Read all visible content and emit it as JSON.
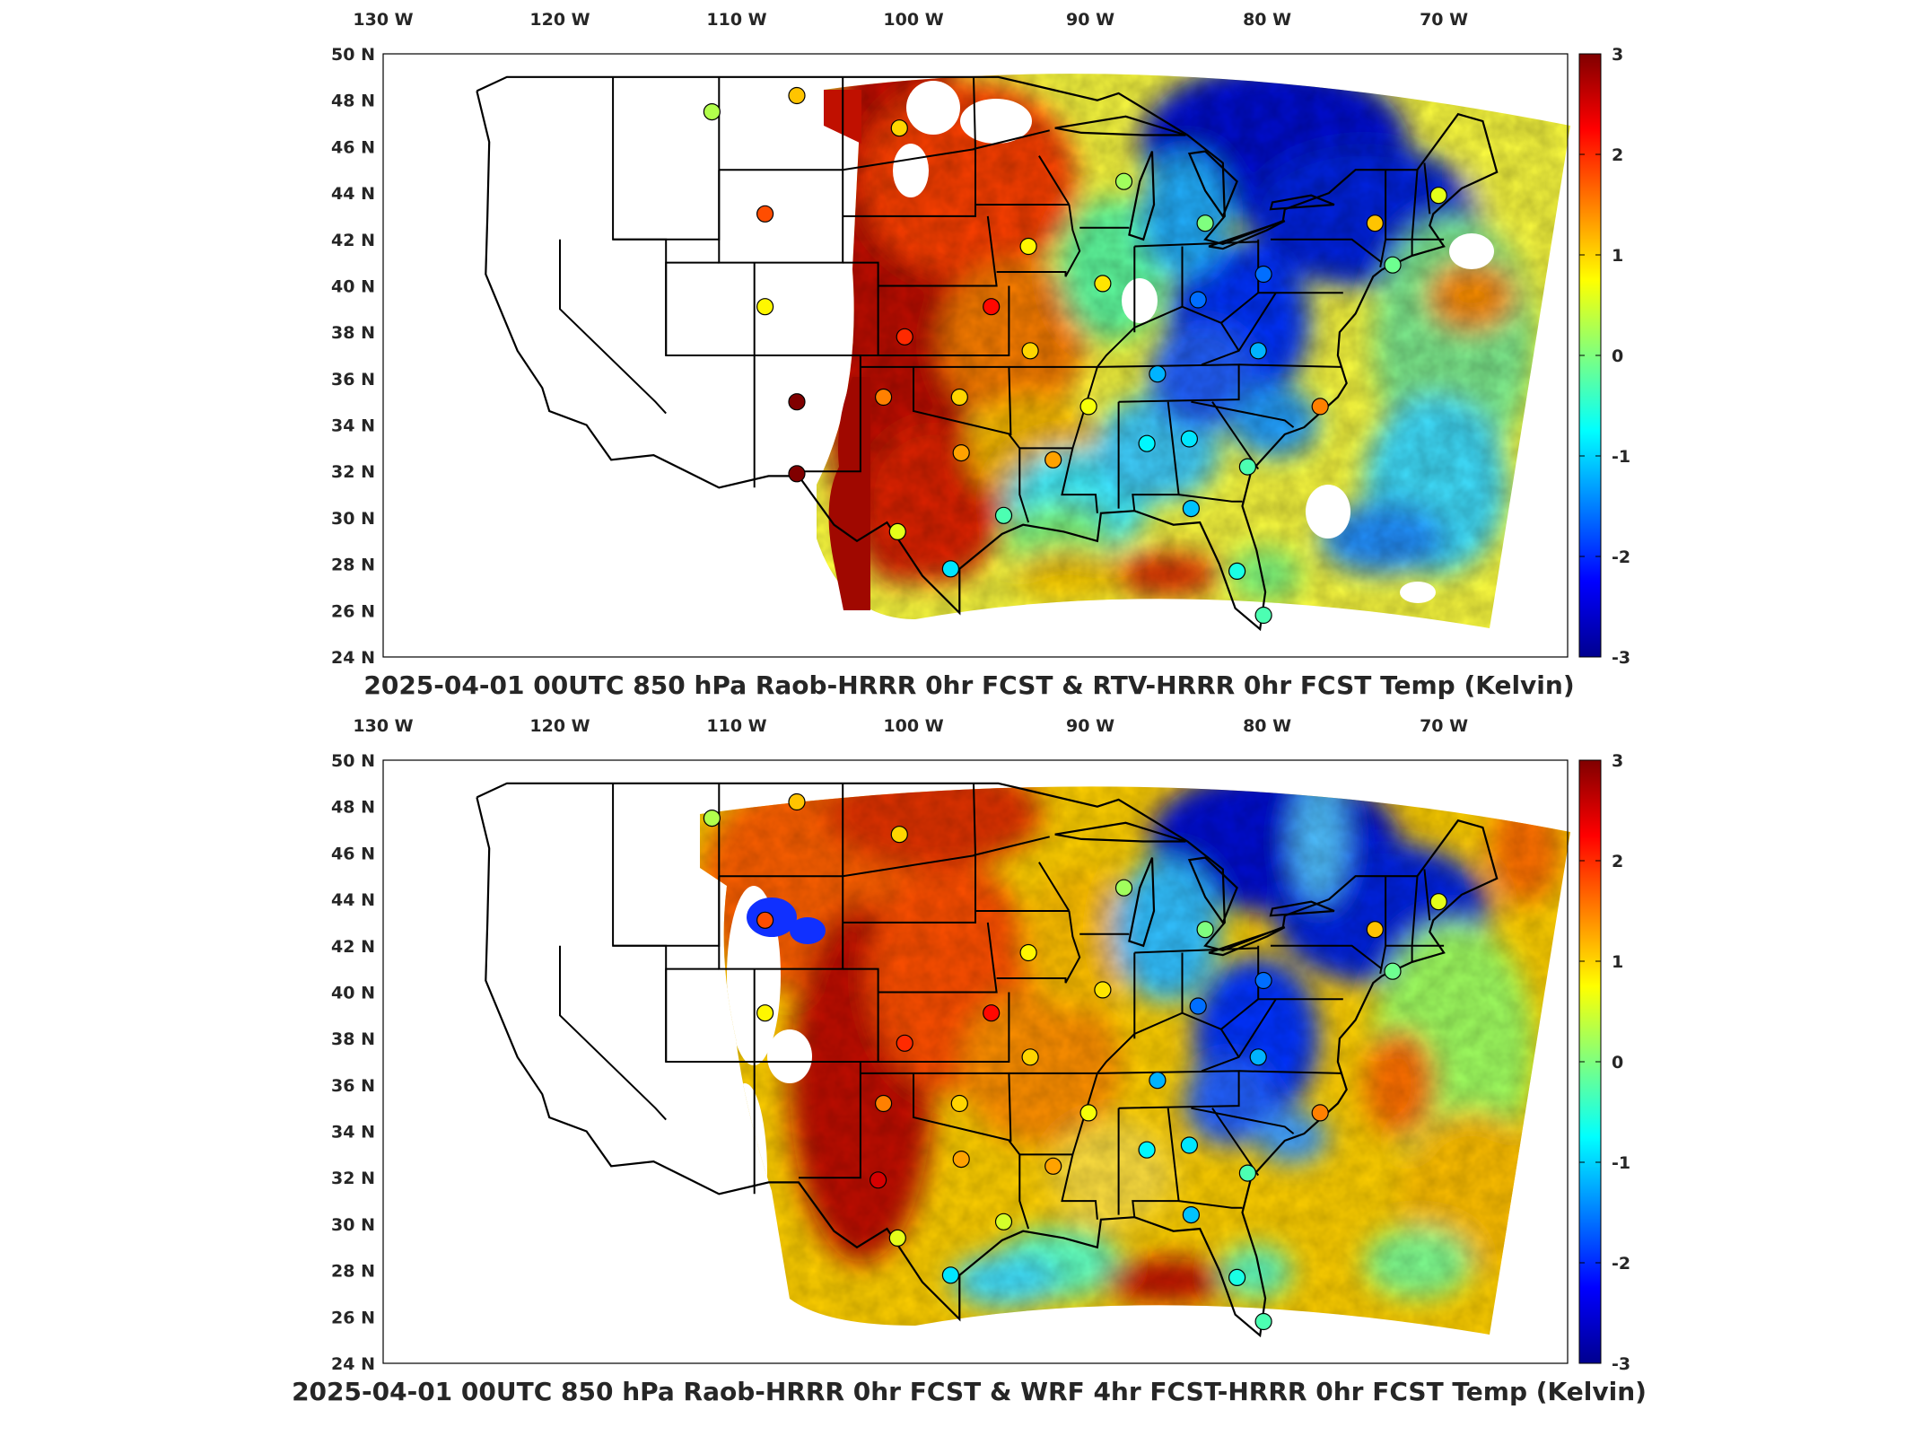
{
  "panels": [
    {
      "id": "top",
      "title": "2025-04-01 00UTC 850 hPa Raob-HRRR 0hr FCST & RTV-HRRR 0hr FCST Temp (Kelvin)",
      "stations_label": "Raob-HRRR",
      "field_label": "RTV-HRRR",
      "stations": [
        {
          "lon": -111.4,
          "lat": 47.5,
          "value": 0.3
        },
        {
          "lon": -106.6,
          "lat": 48.2,
          "value": 1.1
        },
        {
          "lon": -100.8,
          "lat": 46.8,
          "value": 1.0
        },
        {
          "lon": -108.4,
          "lat": 43.1,
          "value": 1.8
        },
        {
          "lon": -108.4,
          "lat": 39.1,
          "value": 0.8
        },
        {
          "lon": -106.6,
          "lat": 35.0,
          "value": 3.0
        },
        {
          "lon": -106.6,
          "lat": 31.9,
          "value": 3.0
        },
        {
          "lon": -100.5,
          "lat": 37.8,
          "value": 2.0
        },
        {
          "lon": -95.6,
          "lat": 39.1,
          "value": 2.2
        },
        {
          "lon": -101.7,
          "lat": 35.2,
          "value": 1.5
        },
        {
          "lon": -97.4,
          "lat": 35.2,
          "value": 1.0
        },
        {
          "lon": -93.4,
          "lat": 37.2,
          "value": 1.0
        },
        {
          "lon": -97.3,
          "lat": 32.8,
          "value": 1.3
        },
        {
          "lon": -100.9,
          "lat": 29.4,
          "value": 0.6
        },
        {
          "lon": -97.9,
          "lat": 27.8,
          "value": -0.9
        },
        {
          "lon": -94.9,
          "lat": 30.1,
          "value": -0.3
        },
        {
          "lon": -92.1,
          "lat": 32.5,
          "value": 1.3
        },
        {
          "lon": -90.1,
          "lat": 34.8,
          "value": 0.7
        },
        {
          "lon": -93.5,
          "lat": 41.7,
          "value": 0.8
        },
        {
          "lon": -89.3,
          "lat": 40.1,
          "value": 0.9
        },
        {
          "lon": -88.1,
          "lat": 44.5,
          "value": 0.2
        },
        {
          "lon": -83.5,
          "lat": 42.7,
          "value": 0.0
        },
        {
          "lon": -86.2,
          "lat": 36.2,
          "value": -1.2
        },
        {
          "lon": -83.9,
          "lat": 39.4,
          "value": -1.6
        },
        {
          "lon": -80.2,
          "lat": 40.5,
          "value": -1.6
        },
        {
          "lon": -80.5,
          "lat": 37.2,
          "value": -1.2
        },
        {
          "lon": -86.8,
          "lat": 33.2,
          "value": -0.8
        },
        {
          "lon": -84.4,
          "lat": 33.4,
          "value": -0.9
        },
        {
          "lon": -81.1,
          "lat": 32.2,
          "value": -0.3
        },
        {
          "lon": -77.0,
          "lat": 34.8,
          "value": 1.5
        },
        {
          "lon": -84.3,
          "lat": 30.4,
          "value": -1.1
        },
        {
          "lon": -81.7,
          "lat": 27.7,
          "value": -0.6
        },
        {
          "lon": -80.2,
          "lat": 25.8,
          "value": -0.3
        },
        {
          "lon": -73.9,
          "lat": 42.7,
          "value": 1.1
        },
        {
          "lon": -70.3,
          "lat": 43.9,
          "value": 0.6
        },
        {
          "lon": -72.9,
          "lat": 40.9,
          "value": -0.1
        }
      ]
    },
    {
      "id": "bottom",
      "title": "2025-04-01 00UTC 850 hPa Raob-HRRR 0hr FCST & WRF 4hr FCST-HRRR 0hr FCST Temp (Kelvin)",
      "stations_label": "Raob-HRRR",
      "field_label": "WRF 4hr FCST-HRRR",
      "stations": [
        {
          "lon": -111.4,
          "lat": 47.5,
          "value": 0.3
        },
        {
          "lon": -106.6,
          "lat": 48.2,
          "value": 1.1
        },
        {
          "lon": -100.8,
          "lat": 46.8,
          "value": 1.0
        },
        {
          "lon": -108.4,
          "lat": 43.1,
          "value": 1.8
        },
        {
          "lon": -108.4,
          "lat": 39.1,
          "value": 0.8
        },
        {
          "lon": -100.5,
          "lat": 37.8,
          "value": 2.0
        },
        {
          "lon": -95.6,
          "lat": 39.1,
          "value": 2.2
        },
        {
          "lon": -101.7,
          "lat": 35.2,
          "value": 1.5
        },
        {
          "lon": -97.4,
          "lat": 35.2,
          "value": 1.0
        },
        {
          "lon": -93.4,
          "lat": 37.2,
          "value": 1.0
        },
        {
          "lon": -97.3,
          "lat": 32.8,
          "value": 1.3
        },
        {
          "lon": -102.0,
          "lat": 31.9,
          "value": 2.5
        },
        {
          "lon": -100.9,
          "lat": 29.4,
          "value": 0.6
        },
        {
          "lon": -97.9,
          "lat": 27.8,
          "value": -0.9
        },
        {
          "lon": -94.9,
          "lat": 30.1,
          "value": 0.5
        },
        {
          "lon": -92.1,
          "lat": 32.5,
          "value": 1.3
        },
        {
          "lon": -90.1,
          "lat": 34.8,
          "value": 0.7
        },
        {
          "lon": -93.5,
          "lat": 41.7,
          "value": 0.8
        },
        {
          "lon": -89.3,
          "lat": 40.1,
          "value": 0.9
        },
        {
          "lon": -88.1,
          "lat": 44.5,
          "value": 0.2
        },
        {
          "lon": -83.5,
          "lat": 42.7,
          "value": 0.0
        },
        {
          "lon": -86.2,
          "lat": 36.2,
          "value": -1.2
        },
        {
          "lon": -83.9,
          "lat": 39.4,
          "value": -1.6
        },
        {
          "lon": -80.2,
          "lat": 40.5,
          "value": -1.6
        },
        {
          "lon": -80.5,
          "lat": 37.2,
          "value": -1.2
        },
        {
          "lon": -86.8,
          "lat": 33.2,
          "value": -0.8
        },
        {
          "lon": -84.4,
          "lat": 33.4,
          "value": -0.9
        },
        {
          "lon": -81.1,
          "lat": 32.2,
          "value": -0.3
        },
        {
          "lon": -77.0,
          "lat": 34.8,
          "value": 1.5
        },
        {
          "lon": -84.3,
          "lat": 30.4,
          "value": -1.1
        },
        {
          "lon": -81.7,
          "lat": 27.7,
          "value": -0.6
        },
        {
          "lon": -80.2,
          "lat": 25.8,
          "value": -0.3
        },
        {
          "lon": -73.9,
          "lat": 42.7,
          "value": 1.1
        },
        {
          "lon": -70.3,
          "lat": 43.9,
          "value": 0.6
        },
        {
          "lon": -72.9,
          "lat": 40.9,
          "value": -0.1
        }
      ]
    }
  ],
  "map": {
    "lon_range": [
      -130,
      -63
    ],
    "lat_range": [
      24,
      50
    ],
    "lon_ticks": [
      {
        "value": -130,
        "label": "130 W"
      },
      {
        "value": -120,
        "label": "120 W"
      },
      {
        "value": -110,
        "label": "110 W"
      },
      {
        "value": -100,
        "label": "100 W"
      },
      {
        "value": -90,
        "label": "90 W"
      },
      {
        "value": -80,
        "label": "80 W"
      },
      {
        "value": -70,
        "label": "70 W"
      }
    ],
    "lat_ticks": [
      {
        "value": 50,
        "label": "50 N"
      },
      {
        "value": 48,
        "label": "48 N"
      },
      {
        "value": 46,
        "label": "46 N"
      },
      {
        "value": 44,
        "label": "44 N"
      },
      {
        "value": 42,
        "label": "42 N"
      },
      {
        "value": 40,
        "label": "40 N"
      },
      {
        "value": 38,
        "label": "38 N"
      },
      {
        "value": 36,
        "label": "36 N"
      },
      {
        "value": 34,
        "label": "34 N"
      },
      {
        "value": 32,
        "label": "32 N"
      },
      {
        "value": 30,
        "label": "30 N"
      },
      {
        "value": 28,
        "label": "28 N"
      },
      {
        "value": 26,
        "label": "26 N"
      },
      {
        "value": 24,
        "label": "24 N"
      }
    ],
    "colormap": "jet"
  },
  "colorbar": {
    "min": -3,
    "max": 3,
    "ticks": [
      {
        "value": 3,
        "label": "3"
      },
      {
        "value": 2,
        "label": "2"
      },
      {
        "value": 1,
        "label": "1"
      },
      {
        "value": 0,
        "label": "0"
      },
      {
        "value": -1,
        "label": "-1"
      },
      {
        "value": -2,
        "label": "-2"
      },
      {
        "value": -3,
        "label": "-3"
      }
    ],
    "units": "Kelvin"
  }
}
